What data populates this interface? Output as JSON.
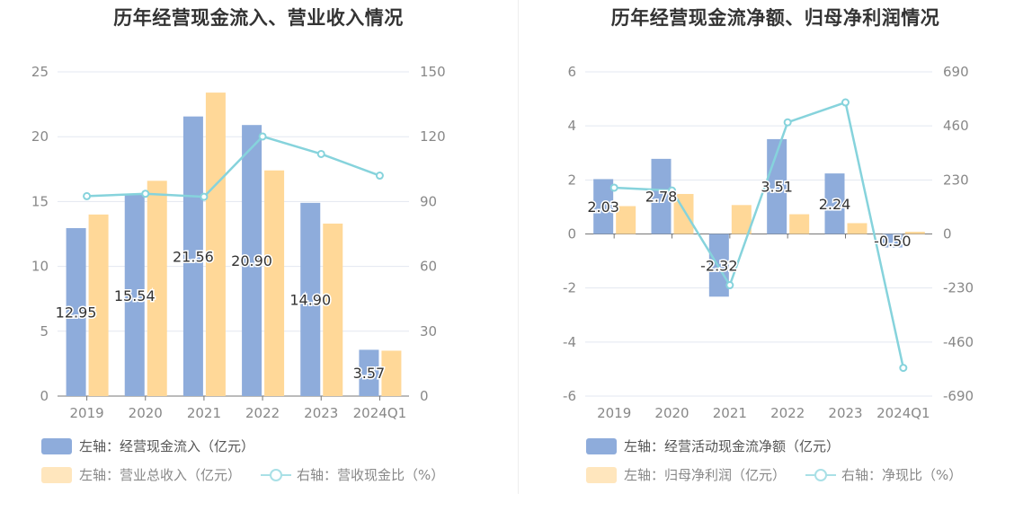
{
  "chart_data": [
    {
      "type": "bar+line",
      "title": "历年经营现金流入、营业收入情况",
      "categories": [
        "2019",
        "2020",
        "2021",
        "2022",
        "2023",
        "2024Q1"
      ],
      "left_axis": {
        "min": 0,
        "max": 25,
        "ticks": [
          "0",
          "5",
          "10",
          "15",
          "20",
          "25"
        ]
      },
      "right_axis": {
        "min": 0,
        "max": 150,
        "ticks": [
          "0",
          "30",
          "60",
          "90",
          "120",
          "150"
        ]
      },
      "series": [
        {
          "name": "左轴：经营现金流入（亿元）",
          "axis": "left",
          "kind": "bar",
          "color": "#8eacdb",
          "values": [
            12.95,
            15.54,
            21.56,
            20.9,
            14.9,
            3.57
          ],
          "labels": [
            "12.95",
            "15.54",
            "21.56",
            "20.90",
            "14.90",
            "3.57"
          ]
        },
        {
          "name": "左轴：营业总收入（亿元）",
          "axis": "left",
          "kind": "bar",
          "color": "#ffd898",
          "values": [
            14.0,
            16.6,
            23.4,
            17.4,
            13.3,
            3.5
          ]
        },
        {
          "name": "右轴：营收现金比（%）",
          "axis": "right",
          "kind": "line",
          "color": "#86d3dc",
          "values": [
            92.5,
            93.6,
            92.2,
            120.1,
            112.0,
            102.0
          ]
        }
      ]
    },
    {
      "type": "bar+line",
      "title": "历年经营现金流净额、归母净利润情况",
      "categories": [
        "2019",
        "2020",
        "2021",
        "2022",
        "2023",
        "2024Q1"
      ],
      "left_axis": {
        "min": -6,
        "max": 6,
        "ticks": [
          "-6",
          "-4",
          "-2",
          "0",
          "2",
          "4",
          "6"
        ]
      },
      "right_axis": {
        "min": -690,
        "max": 690,
        "ticks": [
          "-690",
          "-460",
          "-230",
          "0",
          "230",
          "460",
          "690"
        ]
      },
      "series": [
        {
          "name": "左轴：经营活动现金流净额（亿元）",
          "axis": "left",
          "kind": "bar",
          "color": "#8eacdb",
          "values": [
            2.03,
            2.78,
            -2.32,
            3.51,
            2.24,
            -0.5
          ],
          "labels": [
            "2.03",
            "2.78",
            "-2.32",
            "3.51",
            "2.24",
            "-0.50"
          ]
        },
        {
          "name": "左轴：归母净利润（亿元）",
          "axis": "left",
          "kind": "bar",
          "color": "#ffd898",
          "values": [
            1.03,
            1.48,
            1.07,
            0.73,
            0.4,
            0.08
          ]
        },
        {
          "name": "右轴：净现比（%）",
          "axis": "right",
          "kind": "line",
          "color": "#86d3dc",
          "values": [
            197,
            185,
            -218,
            475,
            560,
            -570
          ]
        }
      ]
    }
  ]
}
